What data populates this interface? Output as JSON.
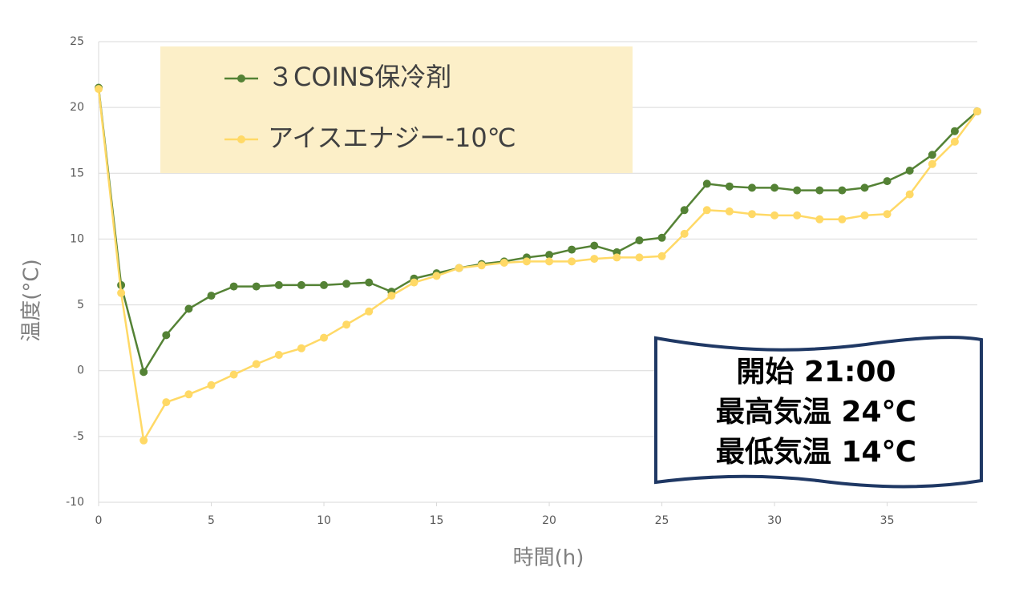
{
  "chart_data": {
    "type": "line",
    "x_label": "時間(h)",
    "y_label": "温度(°C)",
    "x": [
      0,
      1,
      2,
      3,
      4,
      5,
      6,
      7,
      8,
      9,
      10,
      11,
      12,
      13,
      14,
      15,
      16,
      17,
      18,
      19,
      20,
      21,
      22,
      23,
      24,
      25,
      26,
      27,
      28,
      29,
      30,
      31,
      32,
      33,
      34,
      35,
      36,
      37,
      38,
      39
    ],
    "series": [
      {
        "name": "３COINS保冷剤",
        "color": "#548235",
        "values": [
          21.5,
          6.5,
          -0.1,
          2.7,
          4.7,
          5.7,
          6.4,
          6.4,
          6.5,
          6.5,
          6.5,
          6.6,
          6.7,
          6.0,
          7.0,
          7.4,
          7.8,
          8.1,
          8.3,
          8.6,
          8.8,
          9.2,
          9.5,
          9.0,
          9.9,
          10.1,
          12.2,
          14.2,
          14.0,
          13.9,
          13.9,
          13.7,
          13.7,
          13.7,
          13.9,
          14.4,
          15.2,
          16.4,
          18.2,
          19.7
        ]
      },
      {
        "name": "アイスエナジー-10℃",
        "color": "#ffd966",
        "values": [
          21.4,
          5.9,
          -5.3,
          -2.4,
          -1.8,
          -1.1,
          -0.3,
          0.5,
          1.2,
          1.7,
          2.5,
          3.5,
          4.5,
          5.7,
          6.7,
          7.2,
          7.8,
          8.0,
          8.2,
          8.3,
          8.3,
          8.3,
          8.5,
          8.6,
          8.6,
          8.7,
          10.4,
          12.2,
          12.1,
          11.9,
          11.8,
          11.8,
          11.5,
          11.5,
          11.8,
          11.9,
          13.4,
          15.7,
          17.4,
          19.7
        ]
      }
    ],
    "xlim": [
      0,
      39
    ],
    "xticks": [
      0,
      5,
      10,
      15,
      20,
      25,
      30,
      35
    ],
    "ylim": [
      -10,
      25
    ],
    "yticks": [
      -10,
      -5,
      0,
      5,
      10,
      15,
      20,
      25
    ],
    "grid": true,
    "legend_position": "upper left",
    "annotations": [
      "開始 21:00",
      "最高気温 24℃",
      "最低気温 14℃"
    ]
  }
}
